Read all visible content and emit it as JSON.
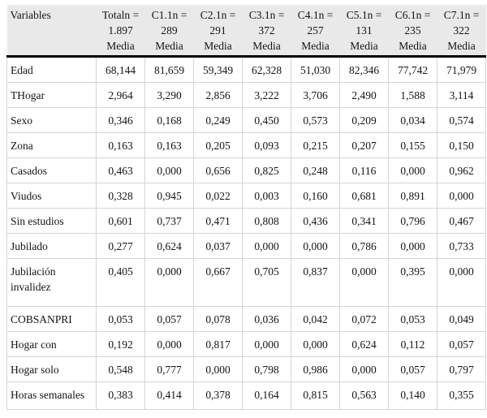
{
  "table": {
    "colors": {
      "header_bg": "#e9e9e9",
      "grid_line": "#d5d5d5",
      "heavy_rule": "#000000",
      "text": "#141414"
    },
    "header": {
      "variables_label": "Variables",
      "stat_label": "Media",
      "columns": [
        {
          "title": "Totaln =",
          "n": "1.897",
          "stat": "Media"
        },
        {
          "title": "C1.1n =",
          "n": "289",
          "stat": "Media"
        },
        {
          "title": "C2.1n =",
          "n": "291",
          "stat": "Media"
        },
        {
          "title": "C3.1n =",
          "n": "372",
          "stat": "Media"
        },
        {
          "title": "C4.1n =",
          "n": "257",
          "stat": "Media"
        },
        {
          "title": "C5.1n =",
          "n": "131",
          "stat": "Media"
        },
        {
          "title": "C6.1n =",
          "n": "235",
          "stat": "Media"
        },
        {
          "title": "C7.1n =",
          "n": "322",
          "stat": "Media"
        }
      ]
    },
    "rows": [
      {
        "label": "Edad",
        "values": [
          "68,144",
          "81,659",
          "59,349",
          "62,328",
          "51,030",
          "82,346",
          "77,742",
          "71,979"
        ]
      },
      {
        "label": "THogar",
        "values": [
          "2,964",
          "3,290",
          "2,856",
          "3,222",
          "3,706",
          "2,490",
          "1,588",
          "3,114"
        ]
      },
      {
        "label": "Sexo",
        "values": [
          "0,346",
          "0,168",
          "0,249",
          "0,450",
          "0,573",
          "0,209",
          "0,034",
          "0,574"
        ]
      },
      {
        "label": "Zona",
        "values": [
          "0,163",
          "0,163",
          "0,205",
          "0,093",
          "0,215",
          "0,207",
          "0,155",
          "0,150"
        ]
      },
      {
        "label": "Casados",
        "values": [
          "0,463",
          "0,000",
          "0,656",
          "0,825",
          "0,248",
          "0,116",
          "0,000",
          "0,962"
        ]
      },
      {
        "label": "Viudos",
        "values": [
          "0,328",
          "0,945",
          "0,022",
          "0,003",
          "0,160",
          "0,681",
          "0,891",
          "0,000"
        ]
      },
      {
        "label": "Sin estudios",
        "values": [
          "0,601",
          "0,737",
          "0,471",
          "0,808",
          "0,436",
          "0,341",
          "0,796",
          "0,467"
        ]
      },
      {
        "label": "Jubilado",
        "values": [
          "0,277",
          "0,624",
          "0,037",
          "0,000",
          "0,000",
          "0,786",
          "0,000",
          "0,733"
        ]
      },
      {
        "label": "Jubilación invalidez",
        "values": [
          "0,405",
          "0,000",
          "0,667",
          "0,705",
          "0,837",
          "0,000",
          "0,395",
          "0,000"
        ]
      },
      {
        "label": "COBSANPRI",
        "values": [
          "0,053",
          "0,057",
          "0,078",
          "0,036",
          "0,042",
          "0,072",
          "0,053",
          "0,049"
        ]
      },
      {
        "label": "Hogar con",
        "values": [
          "0,192",
          "0,000",
          "0,817",
          "0,000",
          "0,000",
          "0,624",
          "0,112",
          "0,057"
        ]
      },
      {
        "label": "Hogar solo",
        "values": [
          "0,548",
          "0,777",
          "0,000",
          "0,798",
          "0,986",
          "0,000",
          "0,057",
          "0,797"
        ]
      },
      {
        "label": "Horas semanales",
        "values": [
          "0,383",
          "0,414",
          "0,378",
          "0,164",
          "0,815",
          "0,563",
          "0,140",
          "0,355"
        ]
      }
    ]
  }
}
